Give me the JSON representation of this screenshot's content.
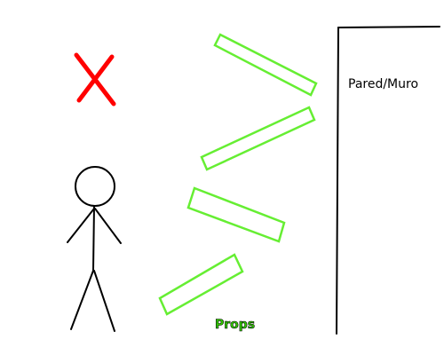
{
  "labels": {
    "wall": "Pared/Muro",
    "props": "Props"
  },
  "colors": {
    "stroke": "#000000",
    "cross": "#ff0000",
    "props": "#66ee33",
    "background": "#ffffff"
  },
  "icons": {
    "cross": "x-mark-icon",
    "figure": "stick-figure-icon"
  }
}
